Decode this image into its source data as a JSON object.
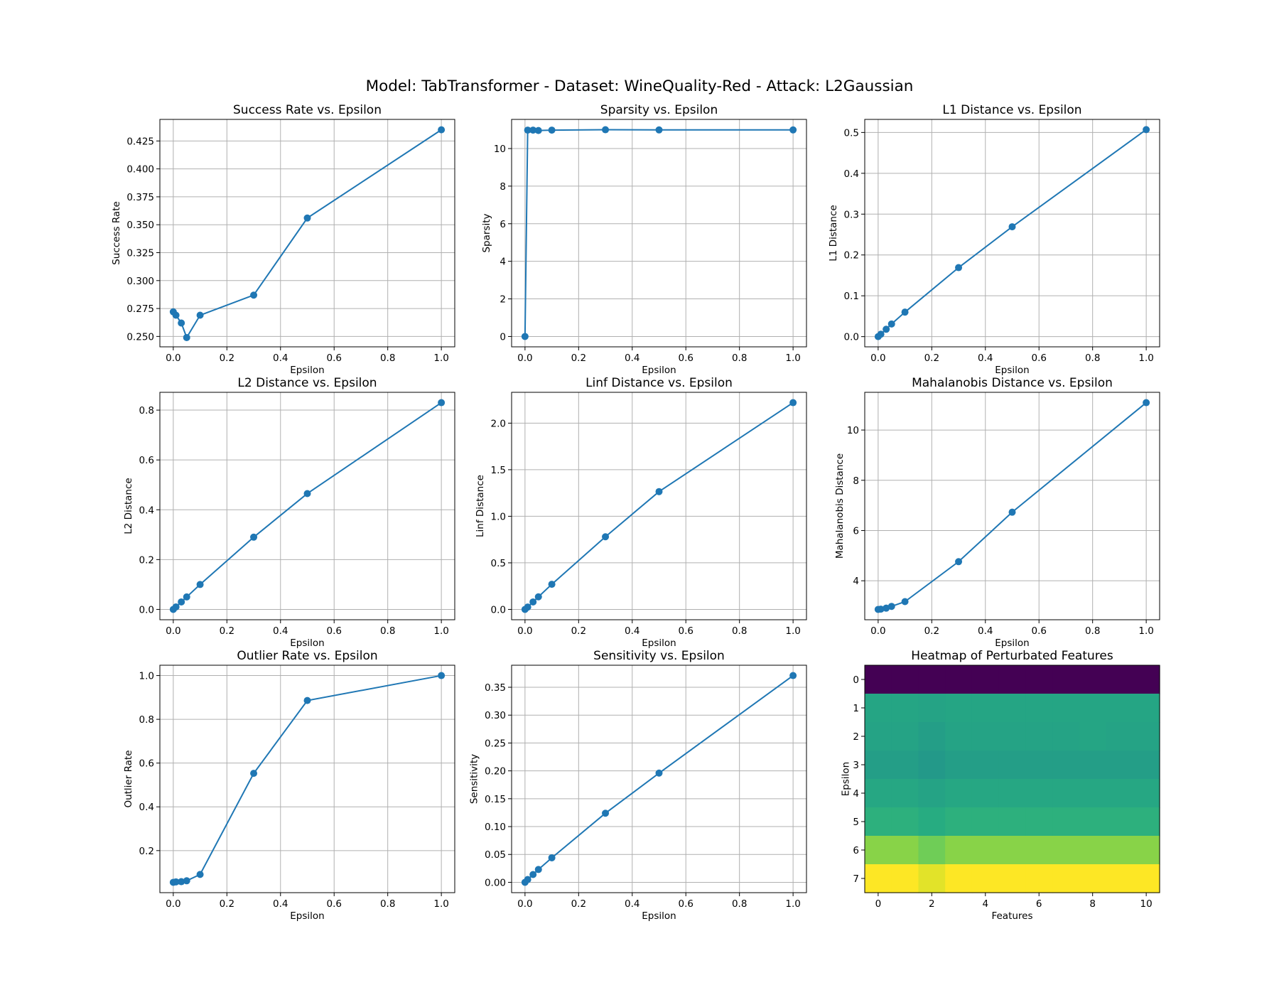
{
  "suptitle": "Model: TabTransformer - Dataset: WineQuality-Red - Attack: L2Gaussian",
  "colors": {
    "line": "#1f77b4",
    "grid": "#b0b0b0",
    "axis": "#000000"
  },
  "chart_data": [
    {
      "type": "line",
      "title": "Success Rate vs. Epsilon",
      "xlabel": "Epsilon",
      "ylabel": "Success Rate",
      "x": [
        0.0,
        0.01,
        0.03,
        0.05,
        0.1,
        0.3,
        0.5,
        1.0
      ],
      "y": [
        0.272,
        0.269,
        0.262,
        0.249,
        0.269,
        0.287,
        0.356,
        0.435
      ],
      "xlim": [
        -0.05,
        1.05
      ],
      "ylim": [
        0.2407,
        0.4443
      ],
      "xticks": [
        0.0,
        0.2,
        0.4,
        0.6,
        0.8,
        1.0
      ],
      "xtick_labels": [
        "0.0",
        "0.2",
        "0.4",
        "0.6",
        "0.8",
        "1.0"
      ],
      "yticks": [
        0.25,
        0.275,
        0.3,
        0.325,
        0.35,
        0.375,
        0.4,
        0.425
      ],
      "ytick_labels": [
        "0.250",
        "0.275",
        "0.300",
        "0.325",
        "0.350",
        "0.375",
        "0.400",
        "0.425"
      ],
      "grid": true
    },
    {
      "type": "line",
      "title": "Sparsity vs. Epsilon",
      "xlabel": "Epsilon",
      "ylabel": "Sparsity",
      "x": [
        0.0,
        0.01,
        0.03,
        0.05,
        0.1,
        0.3,
        0.5,
        1.0
      ],
      "y": [
        0.0,
        10.98,
        10.98,
        10.96,
        10.98,
        11.0,
        10.99,
        10.99
      ],
      "xlim": [
        -0.05,
        1.05
      ],
      "ylim": [
        -0.55,
        11.55
      ],
      "xticks": [
        0.0,
        0.2,
        0.4,
        0.6,
        0.8,
        1.0
      ],
      "xtick_labels": [
        "0.0",
        "0.2",
        "0.4",
        "0.6",
        "0.8",
        "1.0"
      ],
      "yticks": [
        0,
        2,
        4,
        6,
        8,
        10
      ],
      "ytick_labels": [
        "0",
        "2",
        "4",
        "6",
        "8",
        "10"
      ],
      "grid": true
    },
    {
      "type": "line",
      "title": "L1 Distance vs. Epsilon",
      "xlabel": "Epsilon",
      "ylabel": "L1 Distance",
      "x": [
        0.0,
        0.01,
        0.03,
        0.05,
        0.1,
        0.3,
        0.5,
        1.0
      ],
      "y": [
        0.0,
        0.006,
        0.018,
        0.031,
        0.06,
        0.169,
        0.269,
        0.507
      ],
      "xlim": [
        -0.05,
        1.05
      ],
      "ylim": [
        -0.025,
        0.532
      ],
      "xticks": [
        0.0,
        0.2,
        0.4,
        0.6,
        0.8,
        1.0
      ],
      "xtick_labels": [
        "0.0",
        "0.2",
        "0.4",
        "0.6",
        "0.8",
        "1.0"
      ],
      "yticks": [
        0.0,
        0.1,
        0.2,
        0.3,
        0.4,
        0.5
      ],
      "ytick_labels": [
        "0.0",
        "0.1",
        "0.2",
        "0.3",
        "0.4",
        "0.5"
      ],
      "grid": true
    },
    {
      "type": "line",
      "title": "L2 Distance vs. Epsilon",
      "xlabel": "Epsilon",
      "ylabel": "L2 Distance",
      "x": [
        0.0,
        0.01,
        0.03,
        0.05,
        0.1,
        0.3,
        0.5,
        1.0
      ],
      "y": [
        0.0,
        0.01,
        0.03,
        0.05,
        0.1,
        0.29,
        0.465,
        0.83
      ],
      "xlim": [
        -0.05,
        1.05
      ],
      "ylim": [
        -0.0415,
        0.8715
      ],
      "xticks": [
        0.0,
        0.2,
        0.4,
        0.6,
        0.8,
        1.0
      ],
      "xtick_labels": [
        "0.0",
        "0.2",
        "0.4",
        "0.6",
        "0.8",
        "1.0"
      ],
      "yticks": [
        0.0,
        0.2,
        0.4,
        0.6,
        0.8
      ],
      "ytick_labels": [
        "0.0",
        "0.2",
        "0.4",
        "0.6",
        "0.8"
      ],
      "grid": true
    },
    {
      "type": "line",
      "title": "Linf Distance vs. Epsilon",
      "xlabel": "Epsilon",
      "ylabel": "Linf Distance",
      "x": [
        0.0,
        0.01,
        0.03,
        0.05,
        0.1,
        0.3,
        0.5,
        1.0
      ],
      "y": [
        0.0,
        0.025,
        0.08,
        0.135,
        0.27,
        0.78,
        1.265,
        2.22
      ],
      "xlim": [
        -0.05,
        1.05
      ],
      "ylim": [
        -0.111,
        2.331
      ],
      "xticks": [
        0.0,
        0.2,
        0.4,
        0.6,
        0.8,
        1.0
      ],
      "xtick_labels": [
        "0.0",
        "0.2",
        "0.4",
        "0.6",
        "0.8",
        "1.0"
      ],
      "yticks": [
        0.0,
        0.5,
        1.0,
        1.5,
        2.0
      ],
      "ytick_labels": [
        "0.0",
        "0.5",
        "1.0",
        "1.5",
        "2.0"
      ],
      "grid": true
    },
    {
      "type": "line",
      "title": "Mahalanobis Distance vs. Epsilon",
      "xlabel": "Epsilon",
      "ylabel": "Mahalanobis Distance",
      "x": [
        0.0,
        0.01,
        0.03,
        0.05,
        0.1,
        0.3,
        0.5,
        1.0
      ],
      "y": [
        2.86,
        2.87,
        2.91,
        2.98,
        3.17,
        4.76,
        6.73,
        11.09
      ],
      "xlim": [
        -0.05,
        1.05
      ],
      "ylim": [
        2.4485,
        11.5015
      ],
      "xticks": [
        0.0,
        0.2,
        0.4,
        0.6,
        0.8,
        1.0
      ],
      "xtick_labels": [
        "0.0",
        "0.2",
        "0.4",
        "0.6",
        "0.8",
        "1.0"
      ],
      "yticks": [
        4,
        6,
        8,
        10
      ],
      "ytick_labels": [
        "4",
        "6",
        "8",
        "10"
      ],
      "grid": true
    },
    {
      "type": "line",
      "title": "Outlier Rate vs. Epsilon",
      "xlabel": "Epsilon",
      "ylabel": "Outlier Rate",
      "x": [
        0.0,
        0.01,
        0.03,
        0.05,
        0.1,
        0.3,
        0.5,
        1.0
      ],
      "y": [
        0.055,
        0.057,
        0.058,
        0.062,
        0.091,
        0.553,
        0.886,
        1.0
      ],
      "xlim": [
        -0.05,
        1.05
      ],
      "ylim": [
        0.00775,
        1.04725
      ],
      "xticks": [
        0.0,
        0.2,
        0.4,
        0.6,
        0.8,
        1.0
      ],
      "xtick_labels": [
        "0.0",
        "0.2",
        "0.4",
        "0.6",
        "0.8",
        "1.0"
      ],
      "yticks": [
        0.2,
        0.4,
        0.6,
        0.8,
        1.0
      ],
      "ytick_labels": [
        "0.2",
        "0.4",
        "0.6",
        "0.8",
        "1.0"
      ],
      "grid": true
    },
    {
      "type": "line",
      "title": "Sensitivity vs. Epsilon",
      "xlabel": "Epsilon",
      "ylabel": "Sensitivity",
      "x": [
        0.0,
        0.01,
        0.03,
        0.05,
        0.1,
        0.3,
        0.5,
        1.0
      ],
      "y": [
        0.0,
        0.005,
        0.014,
        0.023,
        0.044,
        0.124,
        0.196,
        0.371
      ],
      "xlim": [
        -0.05,
        1.05
      ],
      "ylim": [
        -0.01855,
        0.38955
      ],
      "xticks": [
        0.0,
        0.2,
        0.4,
        0.6,
        0.8,
        1.0
      ],
      "xtick_labels": [
        "0.0",
        "0.2",
        "0.4",
        "0.6",
        "0.8",
        "1.0"
      ],
      "yticks": [
        0.0,
        0.05,
        0.1,
        0.15,
        0.2,
        0.25,
        0.3,
        0.35
      ],
      "ytick_labels": [
        "0.00",
        "0.05",
        "0.10",
        "0.15",
        "0.20",
        "0.25",
        "0.30",
        "0.35"
      ],
      "grid": true
    },
    {
      "type": "heatmap",
      "title": "Heatmap of Perturbated Features",
      "xlabel": "Features",
      "ylabel": "Epsilon",
      "colormap": "viridis",
      "xlim": [
        -0.5,
        10.5
      ],
      "ylim": [
        7.5,
        -0.5
      ],
      "xticks": [
        0,
        2,
        4,
        6,
        8,
        10
      ],
      "xtick_labels": [
        "0",
        "2",
        "4",
        "6",
        "8",
        "10"
      ],
      "yticks": [
        0,
        1,
        2,
        3,
        4,
        5,
        6,
        7
      ],
      "ytick_labels": [
        "0",
        "1",
        "2",
        "3",
        "4",
        "5",
        "6",
        "7"
      ],
      "vmin": 0.0,
      "vmax": 1.0,
      "values": [
        [
          0.0,
          0.0,
          0.0,
          0.0,
          0.0,
          0.0,
          0.0,
          0.0,
          0.0,
          0.0,
          0.0
        ],
        [
          0.59,
          0.59,
          0.58,
          0.59,
          0.59,
          0.59,
          0.59,
          0.59,
          0.59,
          0.59,
          0.59
        ],
        [
          0.58,
          0.58,
          0.56,
          0.58,
          0.58,
          0.58,
          0.58,
          0.58,
          0.59,
          0.58,
          0.58
        ],
        [
          0.56,
          0.56,
          0.54,
          0.56,
          0.56,
          0.56,
          0.56,
          0.56,
          0.56,
          0.56,
          0.56
        ],
        [
          0.6,
          0.6,
          0.58,
          0.6,
          0.6,
          0.6,
          0.6,
          0.6,
          0.6,
          0.6,
          0.6
        ],
        [
          0.64,
          0.64,
          0.62,
          0.64,
          0.64,
          0.64,
          0.64,
          0.64,
          0.64,
          0.64,
          0.64
        ],
        [
          0.82,
          0.82,
          0.78,
          0.82,
          0.82,
          0.82,
          0.82,
          0.82,
          0.82,
          0.82,
          0.82
        ],
        [
          1.0,
          1.0,
          0.96,
          1.0,
          1.0,
          1.0,
          1.0,
          1.0,
          1.0,
          1.0,
          1.0
        ]
      ]
    }
  ]
}
